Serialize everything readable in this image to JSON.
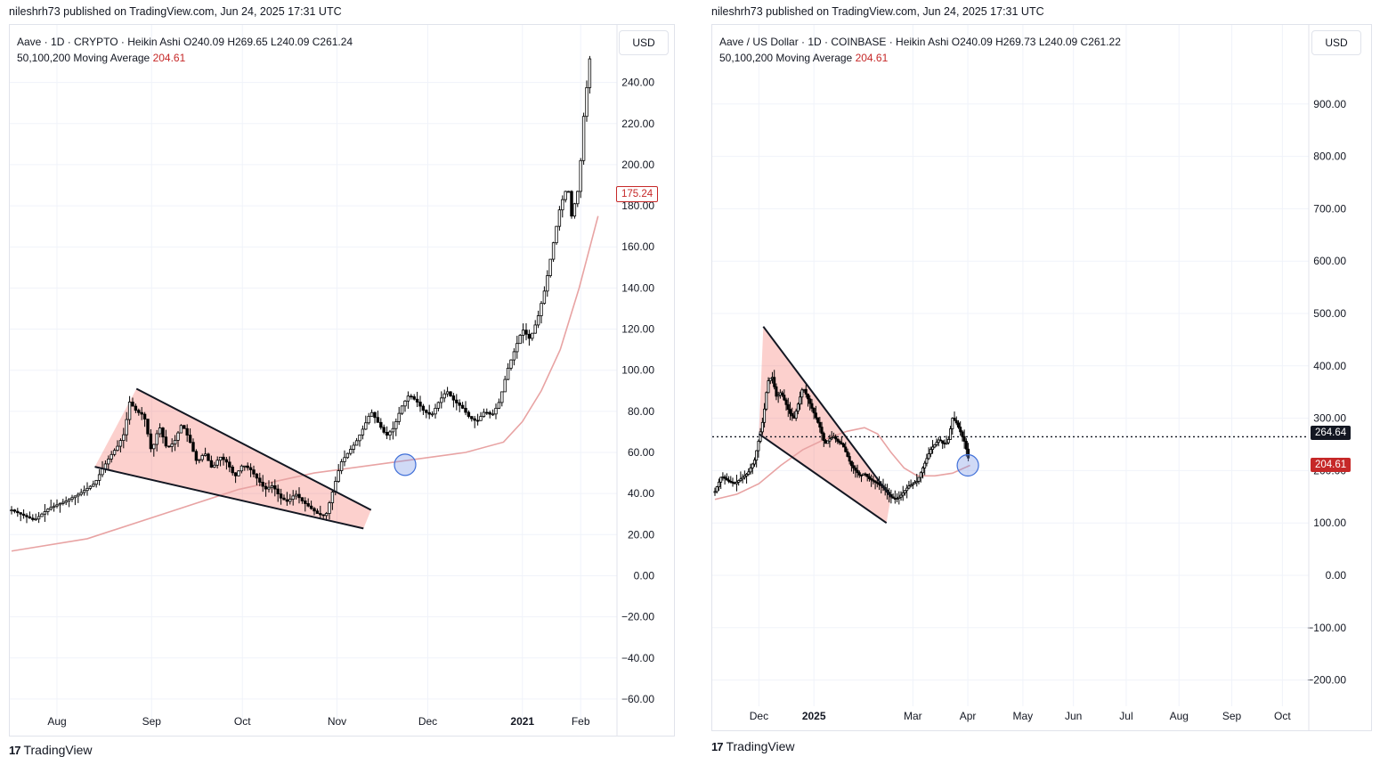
{
  "left_chart": {
    "publish_line": "nileshrh73 published on TradingView.com, Jun 24, 2025 17:31 UTC",
    "legend_line1": "Aave · 1D · CRYPTO · Heikin Ashi  O240.09  H269.65  L240.09  C261.24",
    "legend_line2_label": "50,100,200 Moving Average",
    "legend_line2_value": "204.61",
    "currency": "USD",
    "price_badge": "175.24",
    "brand": "TradingView"
  },
  "right_chart": {
    "publish_line": "nileshrh73 published on TradingView.com, Jun 24, 2025 17:31 UTC",
    "legend_line1": "Aave / US Dollar · 1D · COINBASE · Heikin Ashi  O240.09  H269.73  L240.09  C261.22",
    "legend_line2_label": "50,100,200 Moving Average",
    "legend_line2_value": "204.61",
    "currency": "USD",
    "price_badge_black": "264.64",
    "price_badge_red": "204.61",
    "brand": "TradingView"
  },
  "chart_data": [
    {
      "type": "candlestick",
      "title": "Aave · 1D · CRYPTO · Heikin Ashi",
      "ylim": [
        -70,
        255
      ],
      "y_ticks": [
        "240.00",
        "220.00",
        "200.00",
        "180.00",
        "160.00",
        "140.00",
        "120.00",
        "100.00",
        "80.00",
        "60.00",
        "40.00",
        "20.00",
        "0.00",
        "−20.00",
        "−40.00",
        "−60.00"
      ],
      "x_ticks": [
        "Aug",
        "Sep",
        "Oct",
        "Nov",
        "Dec",
        "2021",
        "Feb"
      ],
      "price_path": [
        [
          0,
          32
        ],
        [
          6,
          27
        ],
        [
          10,
          33
        ],
        [
          14,
          36
        ],
        [
          18,
          40
        ],
        [
          22,
          45
        ],
        [
          24,
          52
        ],
        [
          26,
          58
        ],
        [
          28,
          63
        ],
        [
          30,
          70
        ],
        [
          31,
          85
        ],
        [
          33,
          80
        ],
        [
          35,
          78
        ],
        [
          37,
          60
        ],
        [
          39,
          73
        ],
        [
          41,
          62
        ],
        [
          43,
          65
        ],
        [
          45,
          74
        ],
        [
          47,
          66
        ],
        [
          49,
          55
        ],
        [
          51,
          60
        ],
        [
          53,
          52
        ],
        [
          55,
          58
        ],
        [
          57,
          55
        ],
        [
          59,
          48
        ],
        [
          61,
          54
        ],
        [
          63,
          52
        ],
        [
          65,
          47
        ],
        [
          67,
          42
        ],
        [
          69,
          44
        ],
        [
          71,
          38
        ],
        [
          73,
          36
        ],
        [
          75,
          40
        ],
        [
          77,
          36
        ],
        [
          79,
          33
        ],
        [
          81,
          30
        ],
        [
          83,
          29
        ],
        [
          85,
          42
        ],
        [
          87,
          55
        ],
        [
          89,
          60
        ],
        [
          91,
          65
        ],
        [
          93,
          72
        ],
        [
          95,
          80
        ],
        [
          97,
          74
        ],
        [
          99,
          68
        ],
        [
          101,
          72
        ],
        [
          103,
          82
        ],
        [
          105,
          88
        ],
        [
          107,
          85
        ],
        [
          109,
          80
        ],
        [
          111,
          78
        ],
        [
          113,
          85
        ],
        [
          115,
          90
        ],
        [
          117,
          85
        ],
        [
          119,
          82
        ],
        [
          121,
          77
        ],
        [
          123,
          75
        ],
        [
          125,
          80
        ],
        [
          127,
          78
        ],
        [
          129,
          85
        ],
        [
          131,
          100
        ],
        [
          133,
          110
        ],
        [
          135,
          120
        ],
        [
          137,
          115
        ],
        [
          139,
          125
        ],
        [
          141,
          140
        ],
        [
          143,
          160
        ],
        [
          145,
          180
        ],
        [
          147,
          190
        ],
        [
          148,
          175
        ],
        [
          150,
          190
        ],
        [
          151,
          220
        ],
        [
          153,
          255
        ]
      ],
      "moving_average": [
        [
          0,
          12
        ],
        [
          20,
          18
        ],
        [
          40,
          30
        ],
        [
          60,
          42
        ],
        [
          80,
          50
        ],
        [
          100,
          55
        ],
        [
          120,
          60
        ],
        [
          130,
          65
        ],
        [
          135,
          75
        ],
        [
          140,
          90
        ],
        [
          145,
          110
        ],
        [
          150,
          140
        ],
        [
          155,
          175
        ]
      ],
      "wedge": {
        "upper": [
          [
            33,
            91
          ],
          [
            95,
            32
          ]
        ],
        "lower": [
          [
            22,
            53
          ],
          [
            93,
            23
          ]
        ]
      },
      "marker_circle": [
        104,
        54
      ]
    },
    {
      "type": "candlestick",
      "title": "Aave / US Dollar · 1D · COINBASE · Heikin Ashi",
      "ylim": [
        -250,
        1000
      ],
      "y_ticks": [
        "900.00",
        "800.00",
        "700.00",
        "600.00",
        "500.00",
        "400.00",
        "300.00",
        "200.00",
        "100.00",
        "0.00",
        "−100.00",
        "−200.00"
      ],
      "x_ticks": [
        "Dec",
        "2025",
        "Mar",
        "Apr",
        "May",
        "Jun",
        "Jul",
        "Aug",
        "Sep",
        "Oct"
      ],
      "reference_line": 264.64,
      "price_path": [
        [
          0,
          160
        ],
        [
          3,
          190
        ],
        [
          6,
          180
        ],
        [
          9,
          175
        ],
        [
          12,
          185
        ],
        [
          15,
          195
        ],
        [
          18,
          220
        ],
        [
          20,
          260
        ],
        [
          22,
          300
        ],
        [
          24,
          370
        ],
        [
          26,
          380
        ],
        [
          28,
          340
        ],
        [
          30,
          350
        ],
        [
          32,
          330
        ],
        [
          34,
          310
        ],
        [
          36,
          300
        ],
        [
          38,
          330
        ],
        [
          40,
          360
        ],
        [
          42,
          340
        ],
        [
          44,
          320
        ],
        [
          46,
          300
        ],
        [
          48,
          280
        ],
        [
          50,
          250
        ],
        [
          52,
          260
        ],
        [
          54,
          265
        ],
        [
          56,
          255
        ],
        [
          58,
          250
        ],
        [
          60,
          230
        ],
        [
          62,
          210
        ],
        [
          64,
          200
        ],
        [
          66,
          190
        ],
        [
          68,
          195
        ],
        [
          70,
          185
        ],
        [
          72,
          180
        ],
        [
          74,
          175
        ],
        [
          76,
          170
        ],
        [
          78,
          160
        ],
        [
          80,
          150
        ],
        [
          82,
          145
        ],
        [
          84,
          150
        ],
        [
          86,
          160
        ],
        [
          88,
          170
        ],
        [
          90,
          175
        ],
        [
          92,
          180
        ],
        [
          94,
          200
        ],
        [
          96,
          220
        ],
        [
          98,
          240
        ],
        [
          100,
          250
        ],
        [
          102,
          260
        ],
        [
          104,
          250
        ],
        [
          106,
          255
        ],
        [
          108,
          300
        ],
        [
          110,
          290
        ],
        [
          112,
          270
        ],
        [
          114,
          250
        ],
        [
          115,
          220
        ],
        [
          116,
          240
        ]
      ],
      "moving_average": [
        [
          0,
          145
        ],
        [
          10,
          155
        ],
        [
          20,
          175
        ],
        [
          30,
          210
        ],
        [
          40,
          240
        ],
        [
          50,
          260
        ],
        [
          60,
          275
        ],
        [
          68,
          282
        ],
        [
          74,
          270
        ],
        [
          80,
          235
        ],
        [
          86,
          205
        ],
        [
          92,
          190
        ],
        [
          100,
          190
        ],
        [
          108,
          195
        ],
        [
          116,
          210
        ]
      ],
      "wedge": {
        "upper": [
          [
            22,
            475
          ],
          [
            80,
            150
          ]
        ],
        "lower": [
          [
            20,
            270
          ],
          [
            78,
            100
          ]
        ]
      },
      "marker_circle": [
        115,
        210
      ]
    }
  ]
}
